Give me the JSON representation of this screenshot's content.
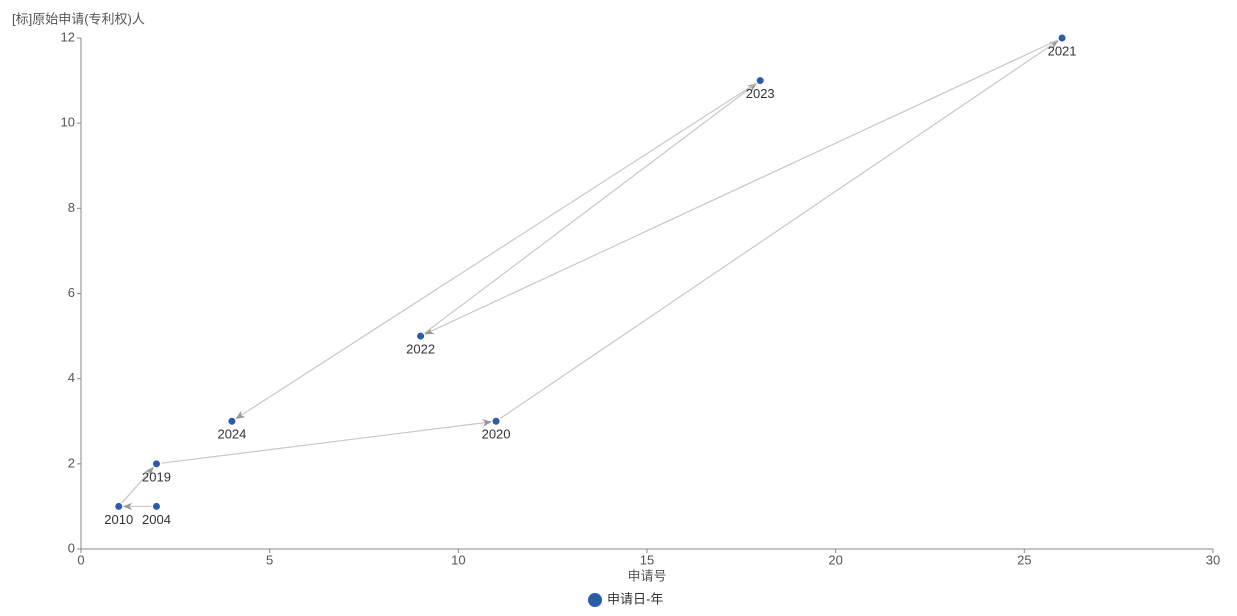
{
  "chart_data": {
    "type": "scatter",
    "y_label": "[标]原始申请(专利权)人",
    "x_label": "申请号",
    "xlim": [
      0,
      30
    ],
    "xticks": [
      0,
      5,
      10,
      15,
      20,
      25,
      30
    ],
    "ylim": [
      0,
      12
    ],
    "yticks": [
      0,
      2,
      4,
      6,
      8,
      10,
      12
    ],
    "connected": true,
    "series": [
      {
        "name": "申请日-年",
        "color": "#2a5caa",
        "x": [
          2,
          1,
          2,
          11,
          26,
          9,
          18,
          4
        ],
        "values": [
          1,
          1,
          2,
          3,
          12,
          5,
          11,
          3
        ],
        "labels": [
          "2004",
          "2010",
          "2019",
          "2020",
          "2021",
          "2022",
          "2023",
          "2024"
        ]
      }
    ]
  }
}
